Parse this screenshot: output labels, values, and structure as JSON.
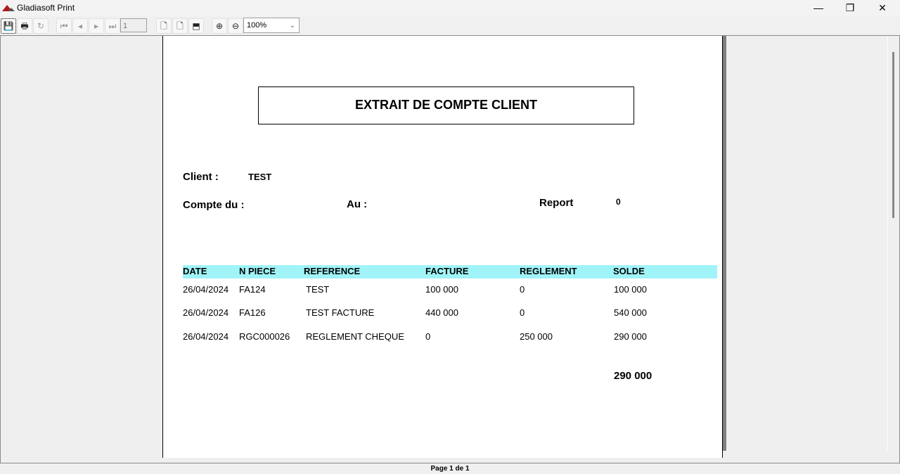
{
  "window": {
    "title": "Gladiasoft Print",
    "minimize": "—",
    "maximize": "❐",
    "close": "✕"
  },
  "toolbar": {
    "page_number": "1",
    "zoom_level": "100%"
  },
  "report": {
    "title": "EXTRAIT DE COMPTE CLIENT",
    "client_label": "Client :",
    "client_value": "TEST",
    "compte_du_label": "Compte du :",
    "au_label": "Au :",
    "report_label": "Report",
    "report_value": "0",
    "header_color": "#a0f4f8",
    "columns": [
      "DATE",
      "N PIECE",
      "REFERENCE",
      "FACTURE",
      "REGLEMENT",
      "SOLDE"
    ],
    "rows": [
      [
        "26/04/2024",
        "FA124",
        "TEST",
        "100 000",
        "0",
        "100 000"
      ],
      [
        "26/04/2024",
        "FA126",
        "TEST FACTURE",
        "440 000",
        "0",
        "540 000"
      ],
      [
        "26/04/2024",
        "RGC000026",
        "REGLEMENT CHEQUE",
        "0",
        "250 000",
        "290 000"
      ]
    ],
    "total": "290 000"
  },
  "status": {
    "page_info": "Page 1 de 1"
  }
}
